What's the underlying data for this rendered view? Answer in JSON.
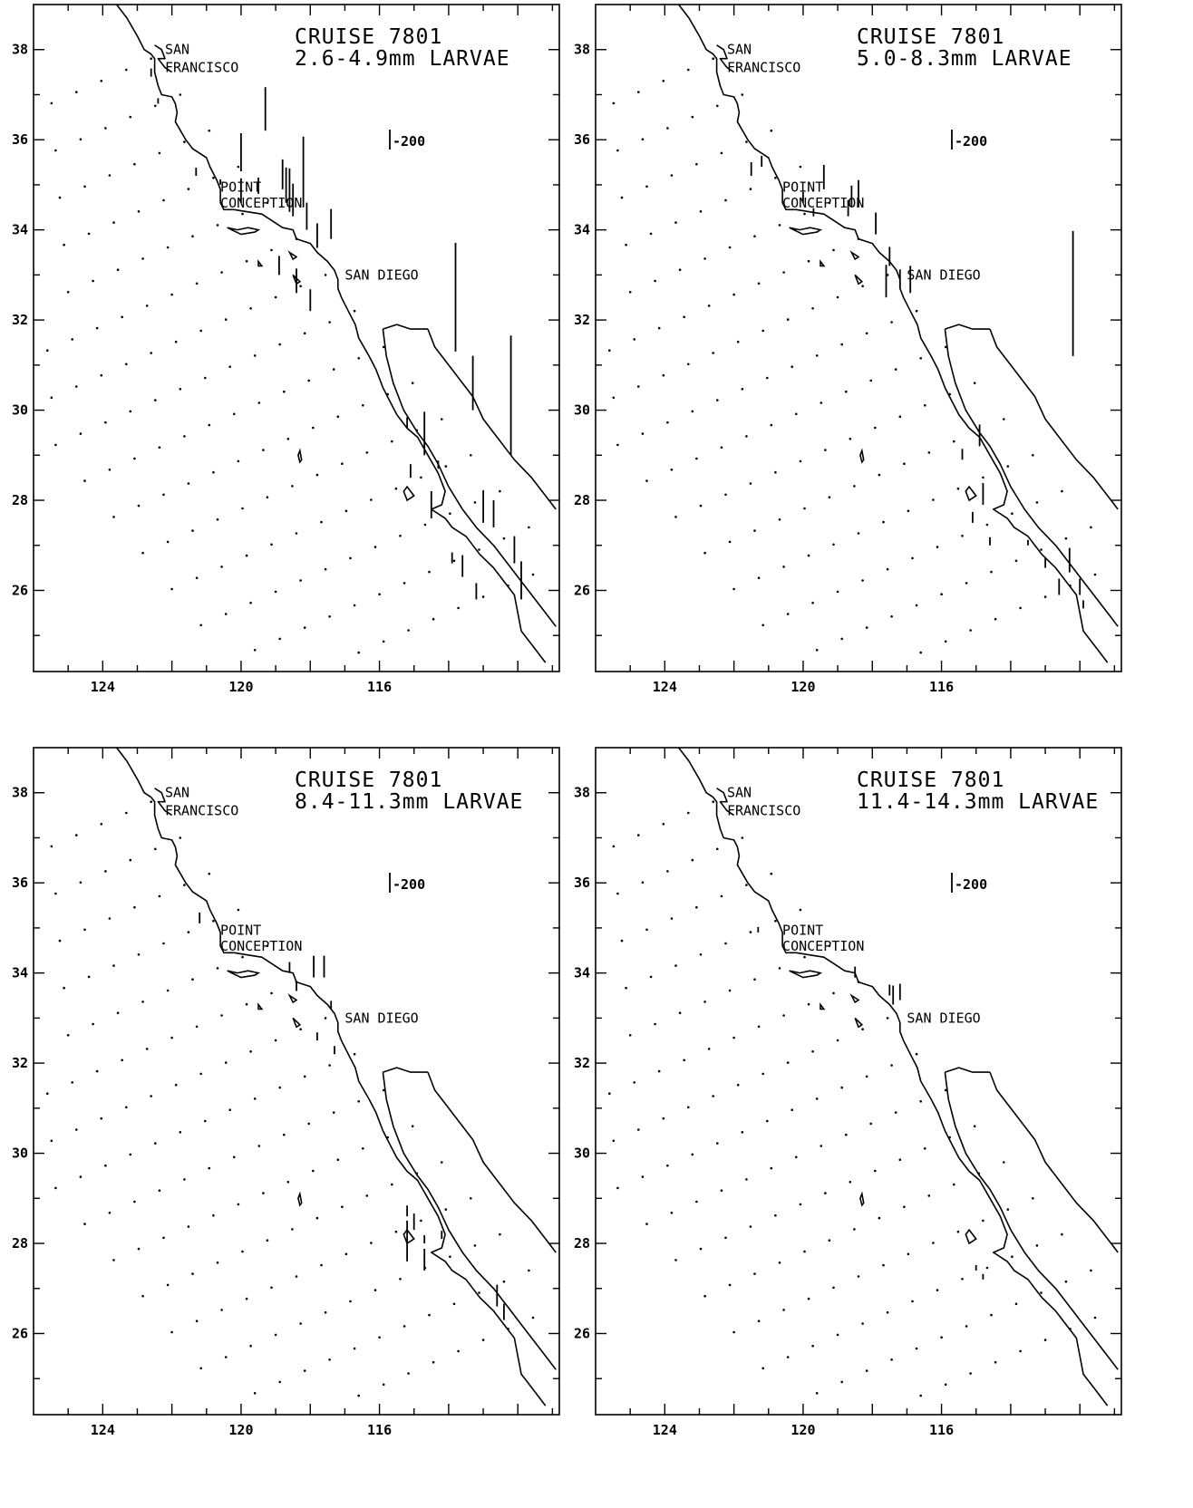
{
  "panels": [
    {
      "cruise": "CRUISE 7801",
      "size_class": "2.6-4.9mm LARVAE",
      "scale_label": "-200",
      "bars": [
        [
          121.3,
          35.2,
          0.3
        ],
        [
          120.6,
          35.0,
          0.2
        ],
        [
          120.0,
          35.3,
          1.4
        ],
        [
          120.0,
          34.6,
          0.9
        ],
        [
          119.5,
          34.8,
          0.6
        ],
        [
          119.3,
          36.2,
          1.6
        ],
        [
          118.8,
          34.9,
          1.1
        ],
        [
          118.7,
          34.6,
          1.3
        ],
        [
          118.6,
          34.4,
          1.6
        ],
        [
          118.5,
          34.3,
          1.2
        ],
        [
          118.2,
          34.5,
          2.6
        ],
        [
          118.1,
          34.0,
          1.0
        ],
        [
          117.8,
          33.6,
          0.9
        ],
        [
          117.4,
          33.8,
          1.1
        ],
        [
          118.9,
          33.0,
          0.7
        ],
        [
          118.4,
          32.6,
          0.9
        ],
        [
          118.0,
          32.2,
          0.8
        ],
        [
          122.6,
          37.4,
          0.3
        ],
        [
          122.4,
          36.8,
          0.2
        ],
        [
          115.2,
          29.6,
          0.4
        ],
        [
          115.1,
          28.5,
          0.5
        ],
        [
          114.7,
          29.0,
          1.6
        ],
        [
          114.3,
          28.7,
          0.3
        ],
        [
          114.5,
          27.6,
          1.0
        ],
        [
          113.8,
          31.3,
          4.0
        ],
        [
          113.3,
          30.0,
          2.0
        ],
        [
          113.0,
          27.5,
          1.2
        ],
        [
          112.7,
          27.4,
          1.0
        ],
        [
          112.2,
          29.0,
          4.4
        ],
        [
          112.1,
          26.6,
          1.0
        ],
        [
          111.9,
          25.8,
          1.4
        ],
        [
          113.9,
          26.6,
          0.4
        ],
        [
          113.6,
          26.3,
          0.8
        ],
        [
          113.2,
          25.8,
          0.6
        ]
      ]
    },
    {
      "cruise": "CRUISE 7801",
      "size_class": "5.0-8.3mm LARVAE",
      "scale_label": "-200",
      "bars": [
        [
          121.5,
          35.2,
          0.5
        ],
        [
          121.2,
          35.4,
          0.4
        ],
        [
          120.0,
          34.6,
          0.4
        ],
        [
          119.7,
          34.3,
          0.3
        ],
        [
          119.4,
          34.9,
          0.9
        ],
        [
          118.7,
          34.3,
          0.6
        ],
        [
          118.6,
          34.5,
          0.8
        ],
        [
          118.4,
          34.5,
          1.0
        ],
        [
          117.9,
          33.9,
          0.8
        ],
        [
          117.5,
          33.2,
          0.7
        ],
        [
          117.6,
          32.5,
          1.2
        ],
        [
          117.2,
          32.7,
          0.7
        ],
        [
          116.9,
          32.6,
          1.0
        ],
        [
          115.4,
          28.9,
          0.4
        ],
        [
          114.9,
          29.2,
          0.8
        ],
        [
          114.8,
          27.9,
          0.8
        ],
        [
          115.1,
          27.5,
          0.4
        ],
        [
          114.6,
          27.0,
          0.3
        ],
        [
          113.5,
          27.0,
          0.2
        ],
        [
          113.0,
          26.5,
          0.4
        ],
        [
          112.6,
          25.9,
          0.6
        ],
        [
          112.3,
          26.4,
          0.9
        ],
        [
          112.0,
          25.9,
          0.6
        ],
        [
          112.2,
          31.2,
          4.6
        ],
        [
          111.9,
          25.6,
          0.3
        ]
      ]
    },
    {
      "cruise": "CRUISE 7801",
      "size_class": "8.4-11.3mm LARVAE",
      "scale_label": "-200",
      "bars": [
        [
          121.2,
          35.1,
          0.4
        ],
        [
          118.6,
          34.0,
          0.4
        ],
        [
          118.4,
          33.6,
          0.3
        ],
        [
          117.9,
          33.9,
          0.8
        ],
        [
          117.6,
          33.9,
          0.8
        ],
        [
          117.4,
          33.2,
          0.3
        ],
        [
          117.8,
          32.5,
          0.3
        ],
        [
          117.3,
          32.2,
          0.3
        ],
        [
          115.2,
          28.6,
          0.4
        ],
        [
          115.0,
          28.3,
          0.6
        ],
        [
          114.7,
          28.0,
          0.3
        ],
        [
          115.2,
          27.6,
          1.5
        ],
        [
          114.7,
          27.4,
          0.8
        ],
        [
          114.2,
          28.1,
          0.3
        ],
        [
          112.6,
          26.6,
          0.8
        ],
        [
          112.4,
          26.3,
          0.6
        ]
      ]
    },
    {
      "cruise": "CRUISE 7801",
      "size_class": "11.4-14.3mm LARVAE",
      "scale_label": "-200",
      "bars": [
        [
          121.3,
          34.9,
          0.2
        ],
        [
          118.5,
          33.9,
          0.4
        ],
        [
          117.5,
          33.5,
          0.4
        ],
        [
          117.4,
          33.3,
          0.7
        ],
        [
          117.2,
          33.4,
          0.6
        ],
        [
          115.0,
          27.4,
          0.2
        ],
        [
          114.8,
          27.2,
          0.2
        ]
      ]
    }
  ],
  "axes": {
    "lat_ticks": [
      "38",
      "36",
      "34",
      "32",
      "30",
      "28",
      "26"
    ],
    "lon_ticks": [
      "124",
      "120",
      "116"
    ]
  },
  "places": {
    "san_francisco": "SAN FRANCISCO",
    "san_francisco_l1": "SAN",
    "san_francisco_l2": "FRANCISCO",
    "point_conception_l1": "POINT",
    "point_conception_l2": "CONCEPTION",
    "san_diego": "SAN DIEGO"
  }
}
